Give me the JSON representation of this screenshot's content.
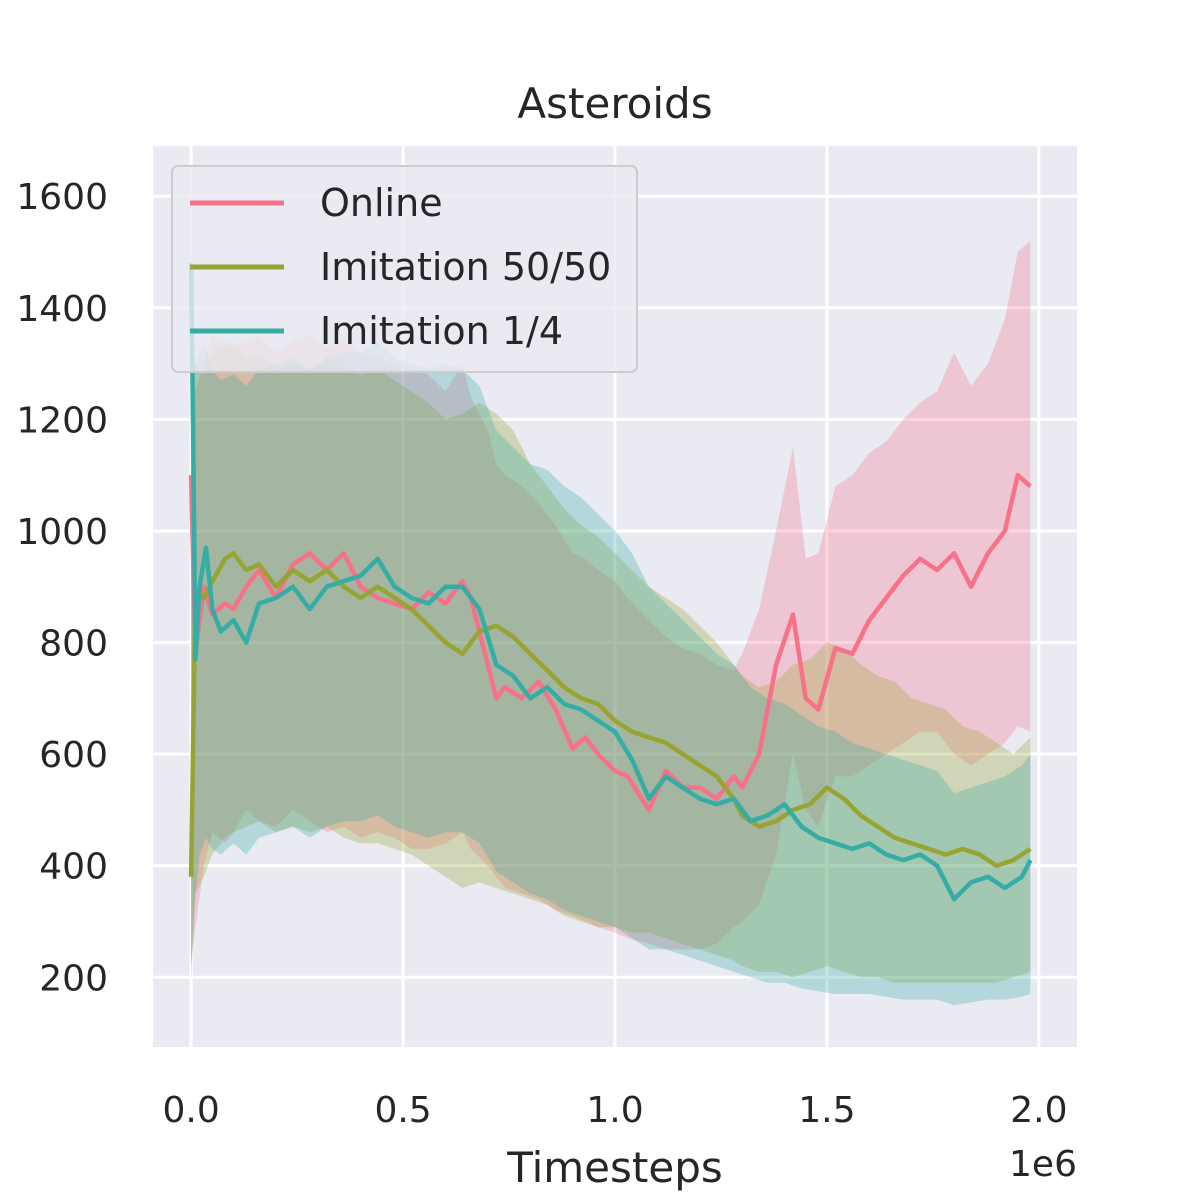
{
  "chart_data": {
    "type": "line",
    "title": "Asteroids",
    "xlabel": "Timesteps",
    "ylabel": "",
    "x_offset_label": "1e6",
    "xlim": [
      -0.09,
      2.09
    ],
    "ylim": [
      75,
      1690
    ],
    "x_ticks": [
      0.0,
      0.5,
      1.0,
      1.5,
      2.0
    ],
    "x_tick_labels": [
      "0.0",
      "0.5",
      "1.0",
      "1.5",
      "2.0"
    ],
    "y_ticks": [
      200,
      400,
      600,
      800,
      1000,
      1200,
      1400,
      1600
    ],
    "y_tick_labels": [
      "200",
      "400",
      "600",
      "800",
      "1000",
      "1200",
      "1400",
      "1600"
    ],
    "grid": true,
    "legend_position": "top-left",
    "background_color": "#eaeaf2",
    "grid_color": "#ffffff",
    "series": [
      {
        "name": "Online",
        "color": "#f77189",
        "x": [
          0,
          0.01,
          0.03,
          0.05,
          0.08,
          0.1,
          0.13,
          0.16,
          0.2,
          0.24,
          0.28,
          0.32,
          0.36,
          0.4,
          0.44,
          0.48,
          0.52,
          0.56,
          0.6,
          0.64,
          0.66,
          0.7,
          0.72,
          0.74,
          0.78,
          0.82,
          0.86,
          0.9,
          0.93,
          0.96,
          1.0,
          1.03,
          1.08,
          1.12,
          1.16,
          1.2,
          1.24,
          1.28,
          1.3,
          1.34,
          1.38,
          1.42,
          1.45,
          1.48,
          1.52,
          1.56,
          1.6,
          1.64,
          1.68,
          1.72,
          1.76,
          1.8,
          1.84,
          1.88,
          1.92,
          1.95,
          1.98
        ],
        "y": [
          1100,
          780,
          900,
          850,
          870,
          860,
          900,
          930,
          880,
          940,
          960,
          930,
          960,
          900,
          880,
          870,
          860,
          890,
          870,
          910,
          880,
          760,
          700,
          720,
          700,
          730,
          680,
          610,
          630,
          600,
          570,
          560,
          500,
          570,
          540,
          540,
          520,
          560,
          540,
          600,
          760,
          850,
          700,
          680,
          790,
          780,
          840,
          880,
          920,
          950,
          930,
          960,
          900,
          960,
          1000,
          1100,
          1080
        ],
        "upper": [
          1300,
          1250,
          1300,
          1350,
          1340,
          1330,
          1340,
          1350,
          1320,
          1340,
          1350,
          1330,
          1340,
          1320,
          1310,
          1300,
          1290,
          1280,
          1250,
          1300,
          1240,
          1180,
          1120,
          1100,
          1080,
          1050,
          1010,
          960,
          950,
          930,
          910,
          880,
          840,
          810,
          790,
          780,
          760,
          750,
          780,
          860,
          1000,
          1150,
          950,
          960,
          1080,
          1100,
          1140,
          1160,
          1200,
          1230,
          1250,
          1320,
          1260,
          1300,
          1380,
          1500,
          1520
        ],
        "lower": [
          230,
          290,
          400,
          460,
          440,
          460,
          500,
          480,
          470,
          500,
          480,
          460,
          470,
          450,
          460,
          450,
          430,
          430,
          440,
          460,
          430,
          400,
          380,
          360,
          350,
          340,
          320,
          310,
          300,
          290,
          280,
          270,
          260,
          250,
          250,
          250,
          260,
          290,
          300,
          330,
          420,
          600,
          500,
          470,
          560,
          560,
          580,
          600,
          620,
          640,
          640,
          600,
          580,
          600,
          620,
          650,
          640
        ]
      },
      {
        "name": "Imitation 50/50",
        "color": "#97a431",
        "x": [
          0,
          0.01,
          0.03,
          0.05,
          0.08,
          0.1,
          0.13,
          0.16,
          0.2,
          0.24,
          0.28,
          0.32,
          0.36,
          0.4,
          0.44,
          0.48,
          0.52,
          0.56,
          0.6,
          0.64,
          0.68,
          0.72,
          0.76,
          0.8,
          0.84,
          0.88,
          0.92,
          0.96,
          1.0,
          1.04,
          1.08,
          1.12,
          1.16,
          1.2,
          1.24,
          1.28,
          1.3,
          1.34,
          1.38,
          1.42,
          1.46,
          1.5,
          1.54,
          1.58,
          1.62,
          1.66,
          1.7,
          1.74,
          1.78,
          1.82,
          1.86,
          1.9,
          1.94,
          1.98
        ],
        "y": [
          380,
          890,
          880,
          910,
          950,
          960,
          930,
          940,
          900,
          930,
          910,
          930,
          900,
          880,
          900,
          880,
          860,
          830,
          800,
          780,
          820,
          830,
          810,
          780,
          750,
          720,
          700,
          690,
          660,
          640,
          630,
          620,
          600,
          580,
          560,
          520,
          490,
          470,
          480,
          500,
          510,
          540,
          520,
          490,
          470,
          450,
          440,
          430,
          420,
          430,
          420,
          400,
          410,
          430
        ],
        "upper": [
          1200,
          1300,
          1280,
          1320,
          1330,
          1340,
          1310,
          1320,
          1290,
          1300,
          1290,
          1310,
          1290,
          1280,
          1290,
          1270,
          1250,
          1230,
          1200,
          1210,
          1230,
          1210,
          1180,
          1120,
          1080,
          1040,
          1010,
          990,
          960,
          930,
          900,
          880,
          860,
          830,
          800,
          760,
          740,
          720,
          730,
          760,
          770,
          800,
          790,
          760,
          740,
          730,
          700,
          690,
          680,
          650,
          640,
          620,
          600,
          630
        ],
        "lower": [
          200,
          350,
          380,
          420,
          450,
          460,
          470,
          480,
          460,
          470,
          460,
          470,
          450,
          440,
          440,
          430,
          420,
          400,
          380,
          360,
          370,
          360,
          350,
          340,
          330,
          310,
          300,
          290,
          290,
          280,
          280,
          270,
          260,
          250,
          240,
          230,
          220,
          210,
          210,
          200,
          210,
          220,
          210,
          200,
          200,
          190,
          190,
          190,
          190,
          190,
          190,
          190,
          200,
          210
        ]
      },
      {
        "name": "Imitation 1/4",
        "color": "#36ada4",
        "x": [
          0,
          0.005,
          0.01,
          0.02,
          0.035,
          0.05,
          0.07,
          0.1,
          0.13,
          0.16,
          0.2,
          0.24,
          0.28,
          0.32,
          0.36,
          0.4,
          0.44,
          0.48,
          0.52,
          0.56,
          0.6,
          0.64,
          0.68,
          0.72,
          0.76,
          0.8,
          0.84,
          0.88,
          0.92,
          0.96,
          1.0,
          1.04,
          1.08,
          1.12,
          1.16,
          1.2,
          1.24,
          1.28,
          1.32,
          1.36,
          1.4,
          1.44,
          1.48,
          1.52,
          1.56,
          1.6,
          1.64,
          1.68,
          1.72,
          1.76,
          1.8,
          1.84,
          1.88,
          1.92,
          1.96,
          1.98
        ],
        "y": [
          1480,
          1150,
          770,
          900,
          970,
          860,
          820,
          840,
          800,
          870,
          880,
          900,
          860,
          900,
          910,
          920,
          950,
          900,
          880,
          870,
          900,
          900,
          860,
          760,
          740,
          700,
          720,
          690,
          680,
          660,
          640,
          590,
          520,
          560,
          540,
          520,
          510,
          520,
          480,
          490,
          510,
          470,
          450,
          440,
          430,
          440,
          420,
          410,
          420,
          400,
          340,
          370,
          380,
          360,
          380,
          410
        ],
        "upper": [
          1500,
          1400,
          1300,
          1320,
          1330,
          1290,
          1270,
          1280,
          1260,
          1290,
          1300,
          1310,
          1290,
          1310,
          1320,
          1320,
          1340,
          1310,
          1300,
          1290,
          1300,
          1290,
          1260,
          1180,
          1150,
          1120,
          1110,
          1080,
          1060,
          1030,
          1000,
          960,
          900,
          870,
          840,
          810,
          780,
          760,
          720,
          700,
          690,
          670,
          650,
          640,
          620,
          610,
          600,
          590,
          580,
          570,
          530,
          540,
          550,
          560,
          580,
          600
        ],
        "lower": [
          200,
          300,
          350,
          420,
          450,
          430,
          420,
          440,
          420,
          450,
          460,
          470,
          450,
          470,
          480,
          480,
          490,
          470,
          460,
          450,
          460,
          460,
          440,
          390,
          370,
          350,
          340,
          320,
          310,
          300,
          290,
          270,
          250,
          250,
          240,
          230,
          220,
          210,
          200,
          190,
          190,
          180,
          175,
          170,
          170,
          170,
          165,
          160,
          160,
          160,
          150,
          155,
          160,
          160,
          165,
          170
        ]
      }
    ]
  }
}
